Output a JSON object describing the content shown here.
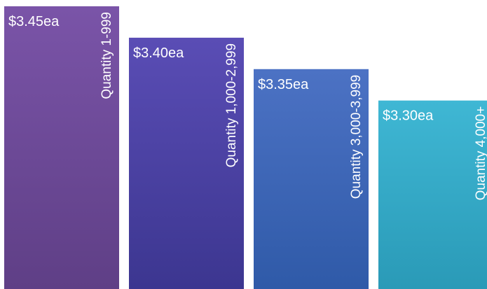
{
  "chart_data": {
    "type": "bar",
    "categories": [
      "Quantity 1-999",
      "Quantity 1,000-2,999",
      "Quantity 3,000-3,999",
      "Quantity  4,000+"
    ],
    "values": [
      3.45,
      3.4,
      3.35,
      3.3
    ],
    "data_labels": [
      "$3.45ea",
      "$3.40ea",
      "$3.35ea",
      "$3.30ea"
    ],
    "ylim": [
      3.0,
      3.45
    ],
    "grid": false,
    "legend": "none",
    "colors": [
      {
        "top": "#7a54a8",
        "bottom": "#5f3f86"
      },
      {
        "top": "#5a4db5",
        "bottom": "#3c3690"
      },
      {
        "top": "#4c72c4",
        "bottom": "#2f5aa8"
      },
      {
        "top": "#3fb7d4",
        "bottom": "#2a9ab7"
      }
    ]
  }
}
